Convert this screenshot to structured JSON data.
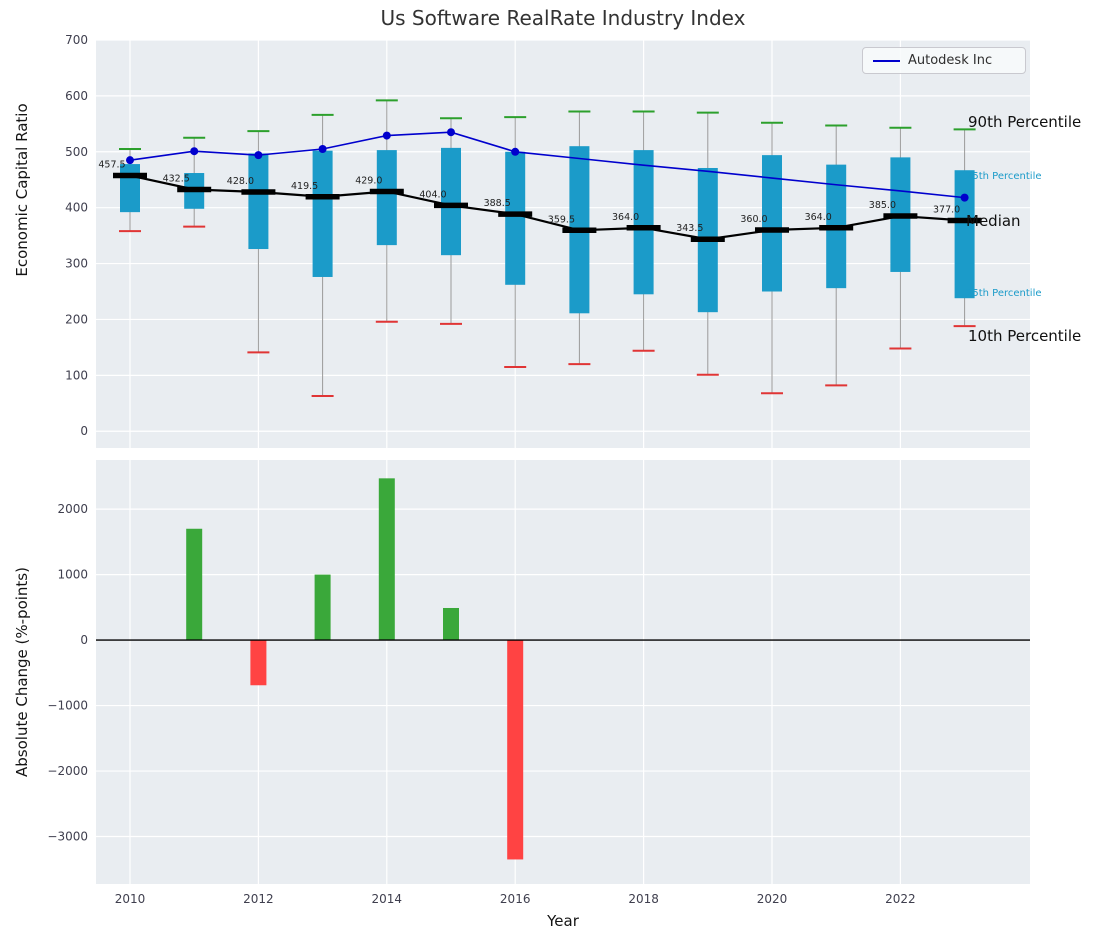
{
  "title": "Us Software RealRate Industry Index",
  "legend": {
    "label": "Autodesk Inc"
  },
  "axes": {
    "top_ylabel": "Economic Capital Ratio",
    "bottom_ylabel": "Absolute Change (%-points)",
    "xlabel": "Year"
  },
  "annotations": {
    "p90": "90th Percentile",
    "p75": "75th Percentile",
    "median": "Median",
    "p25": "25th Percentile",
    "p10": "10th Percentile"
  },
  "colors": {
    "box": "#1b9bc9",
    "p90_cap": "#2ca02c",
    "p10_cap": "#e03535",
    "pos_bar": "#3aa83a",
    "neg_bar": "#ff4343",
    "autodesk": "#0000cd",
    "median_line": "#000000",
    "whisker": "#9a9a9a",
    "background": "#e9edf1",
    "grid": "#ffffff",
    "tick_label": "#3f3f4e"
  },
  "chart_data": [
    {
      "type": "boxplot+line",
      "title": "Us Software RealRate Industry Index",
      "ylabel": "Economic Capital Ratio",
      "ylim": [
        -30,
        700
      ],
      "yticks": [
        0,
        100,
        200,
        300,
        400,
        500,
        600,
        700
      ],
      "ytick_labels": [
        "0",
        "100",
        "200",
        "300",
        "400",
        "500",
        "600",
        "700"
      ],
      "xticks": [
        2010,
        2012,
        2014,
        2016,
        2018,
        2020,
        2022
      ],
      "xtick_labels": [
        "2010",
        "2012",
        "2014",
        "2016",
        "2018",
        "2020",
        "2022"
      ],
      "years": [
        2010,
        2011,
        2012,
        2013,
        2014,
        2015,
        2016,
        2017,
        2018,
        2019,
        2020,
        2021,
        2022,
        2023
      ],
      "p90": [
        505,
        525,
        537,
        566,
        592,
        560,
        562,
        572,
        572,
        570,
        552,
        547,
        543,
        540
      ],
      "q75": [
        478,
        462,
        497,
        502,
        503,
        507,
        500,
        510,
        503,
        471,
        494,
        477,
        490,
        467
      ],
      "median": [
        457.5,
        432.5,
        428.0,
        419.5,
        429.0,
        404.0,
        388.5,
        359.5,
        364.0,
        343.5,
        360.0,
        364.0,
        385.0,
        377.0
      ],
      "q25": [
        392,
        398,
        326,
        276,
        333,
        315,
        262,
        211,
        245,
        213,
        250,
        256,
        285,
        238
      ],
      "p10": [
        358,
        366,
        141,
        63,
        196,
        192,
        115,
        120,
        144,
        101,
        68,
        82,
        148,
        188
      ],
      "median_labels": [
        "457.5",
        "432.5",
        "428.0",
        "419.5",
        "429.0",
        "404.0",
        "388.5",
        "359.5",
        "364.0",
        "343.5",
        "360.0",
        "364.0",
        "385.0",
        "377.0"
      ],
      "autodesk": {
        "name": "Autodesk Inc",
        "values": [
          485,
          501,
          494,
          505,
          529,
          535,
          500,
          488,
          476,
          465,
          453,
          441,
          430,
          418
        ],
        "markers": [
          true,
          true,
          true,
          true,
          true,
          true,
          true,
          false,
          false,
          false,
          false,
          false,
          false,
          true
        ]
      }
    },
    {
      "type": "bar",
      "ylabel": "Absolute Change (%-points)",
      "xlabel": "Year",
      "ylim": [
        -3725,
        2750
      ],
      "yticks": [
        2000,
        1000,
        0,
        -1000,
        -2000,
        -3000
      ],
      "ytick_labels": [
        "2000",
        "1000",
        "0",
        "−1000",
        "−2000",
        "−3000"
      ],
      "years": [
        2010,
        2011,
        2012,
        2013,
        2014,
        2015,
        2016,
        2017,
        2018,
        2019,
        2020,
        2021,
        2022,
        2023
      ],
      "values": [
        0,
        1700,
        -690,
        1000,
        2470,
        490,
        -3350,
        0,
        0,
        0,
        0,
        0,
        0,
        0
      ]
    }
  ]
}
